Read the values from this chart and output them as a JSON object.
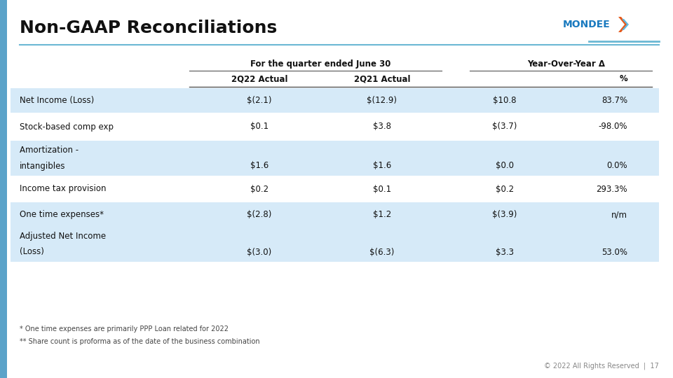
{
  "title": "Non-GAAP Reconciliations",
  "subtitle_center": "For the quarter ended June 30",
  "subtitle_right": "Year-Over-Year Δ",
  "rows": [
    {
      "label": "Net Income (Loss)",
      "q22": "$(2.1)",
      "q21": "$(12.9)",
      "delta": "$10.8",
      "pct": "83.7%",
      "highlight": true
    },
    {
      "label": "Stock-based comp exp",
      "q22": "$0.1",
      "q21": "$3.8",
      "delta": "$(3.7)",
      "pct": "-98.0%",
      "highlight": false
    },
    {
      "label": "Amortization -\nintangibles",
      "q22": "$1.6",
      "q21": "$1.6",
      "delta": "$0.0",
      "pct": "0.0%",
      "highlight": true
    },
    {
      "label": "Income tax provision",
      "q22": "$0.2",
      "q21": "$0.1",
      "delta": "$0.2",
      "pct": "293.3%",
      "highlight": false
    },
    {
      "label": "One time expenses*",
      "q22": "$(2.8)",
      "q21": "$1.2",
      "delta": "$(3.9)",
      "pct": "n/m",
      "highlight": true
    },
    {
      "label": "Adjusted Net Income\n(Loss)",
      "q22": "$(3.0)",
      "q21": "$(6.3)",
      "delta": "$3.3",
      "pct": "53.0%",
      "highlight": true
    }
  ],
  "footnotes": [
    "* One time expenses are primarily PPP Loan related for 2022",
    "** Share count is proforma as of the date of the business combination"
  ],
  "copyright": "© 2022 All Rights Reserved  |  17",
  "highlight_color": "#d6eaf8",
  "header_line_color": "#555555",
  "title_font_size": 18,
  "background_color": "#ffffff",
  "blue_line_color": "#6bb8d4",
  "left_bar_color": "#5ba3c9",
  "mondee_blue": "#1a7abf",
  "mondee_orange": "#e55a1c",
  "mondee_lightblue": "#5eb8e0"
}
